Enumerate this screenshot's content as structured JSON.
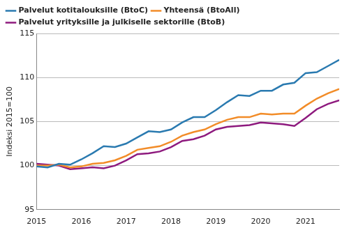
{
  "chart_data": {
    "type": "line",
    "y_label": "Indeksi 2015=100",
    "x": [
      2015,
      2015.25,
      2015.5,
      2015.75,
      2016,
      2016.25,
      2016.5,
      2016.75,
      2017,
      2017.25,
      2017.5,
      2017.75,
      2018,
      2018.25,
      2018.5,
      2018.75,
      2019,
      2019.25,
      2019.5,
      2019.75,
      2020,
      2020.25,
      2020.5,
      2020.75,
      2021,
      2021.25,
      2021.5,
      2021.75
    ],
    "series": [
      {
        "name": "Palvelut kotitalouksille (BtoC)",
        "color": "#2a7ab0",
        "values": [
          99.9,
          99.8,
          100.2,
          100.1,
          100.7,
          101.4,
          102.2,
          102.1,
          102.5,
          103.2,
          103.9,
          103.8,
          104.1,
          104.9,
          105.5,
          105.5,
          106.3,
          107.2,
          108.0,
          107.9,
          108.5,
          108.5,
          109.2,
          109.4,
          110.5,
          110.6,
          111.3,
          112.0
        ]
      },
      {
        "name": "Yhteensä (BtoAll)",
        "color": "#f28c28",
        "values": [
          100.0,
          100.0,
          100.1,
          99.8,
          99.9,
          100.2,
          100.3,
          100.6,
          101.1,
          101.8,
          102.0,
          102.2,
          102.7,
          103.4,
          103.8,
          104.1,
          104.7,
          105.2,
          105.5,
          105.5,
          105.9,
          105.8,
          105.9,
          105.9,
          106.8,
          107.6,
          108.2,
          108.7
        ]
      },
      {
        "name": "Palvelut yrityksille ja julkiselle sektorille (BtoB)",
        "color": "#8e1a7e",
        "values": [
          100.2,
          100.1,
          100.0,
          99.6,
          99.7,
          99.8,
          99.7,
          100.0,
          100.6,
          101.3,
          101.4,
          101.6,
          102.1,
          102.8,
          103.0,
          103.4,
          104.1,
          104.4,
          104.5,
          104.6,
          104.9,
          104.8,
          104.7,
          104.5,
          105.4,
          106.4,
          107.0,
          107.4
        ]
      }
    ],
    "xlim": [
      2015,
      2021.75
    ],
    "xticks": [
      2015,
      2016,
      2017,
      2018,
      2019,
      2020,
      2021
    ],
    "ylim": [
      95,
      115
    ],
    "yticks": [
      95,
      100,
      105,
      110,
      115
    ],
    "grid": true,
    "legend": "top-left"
  }
}
